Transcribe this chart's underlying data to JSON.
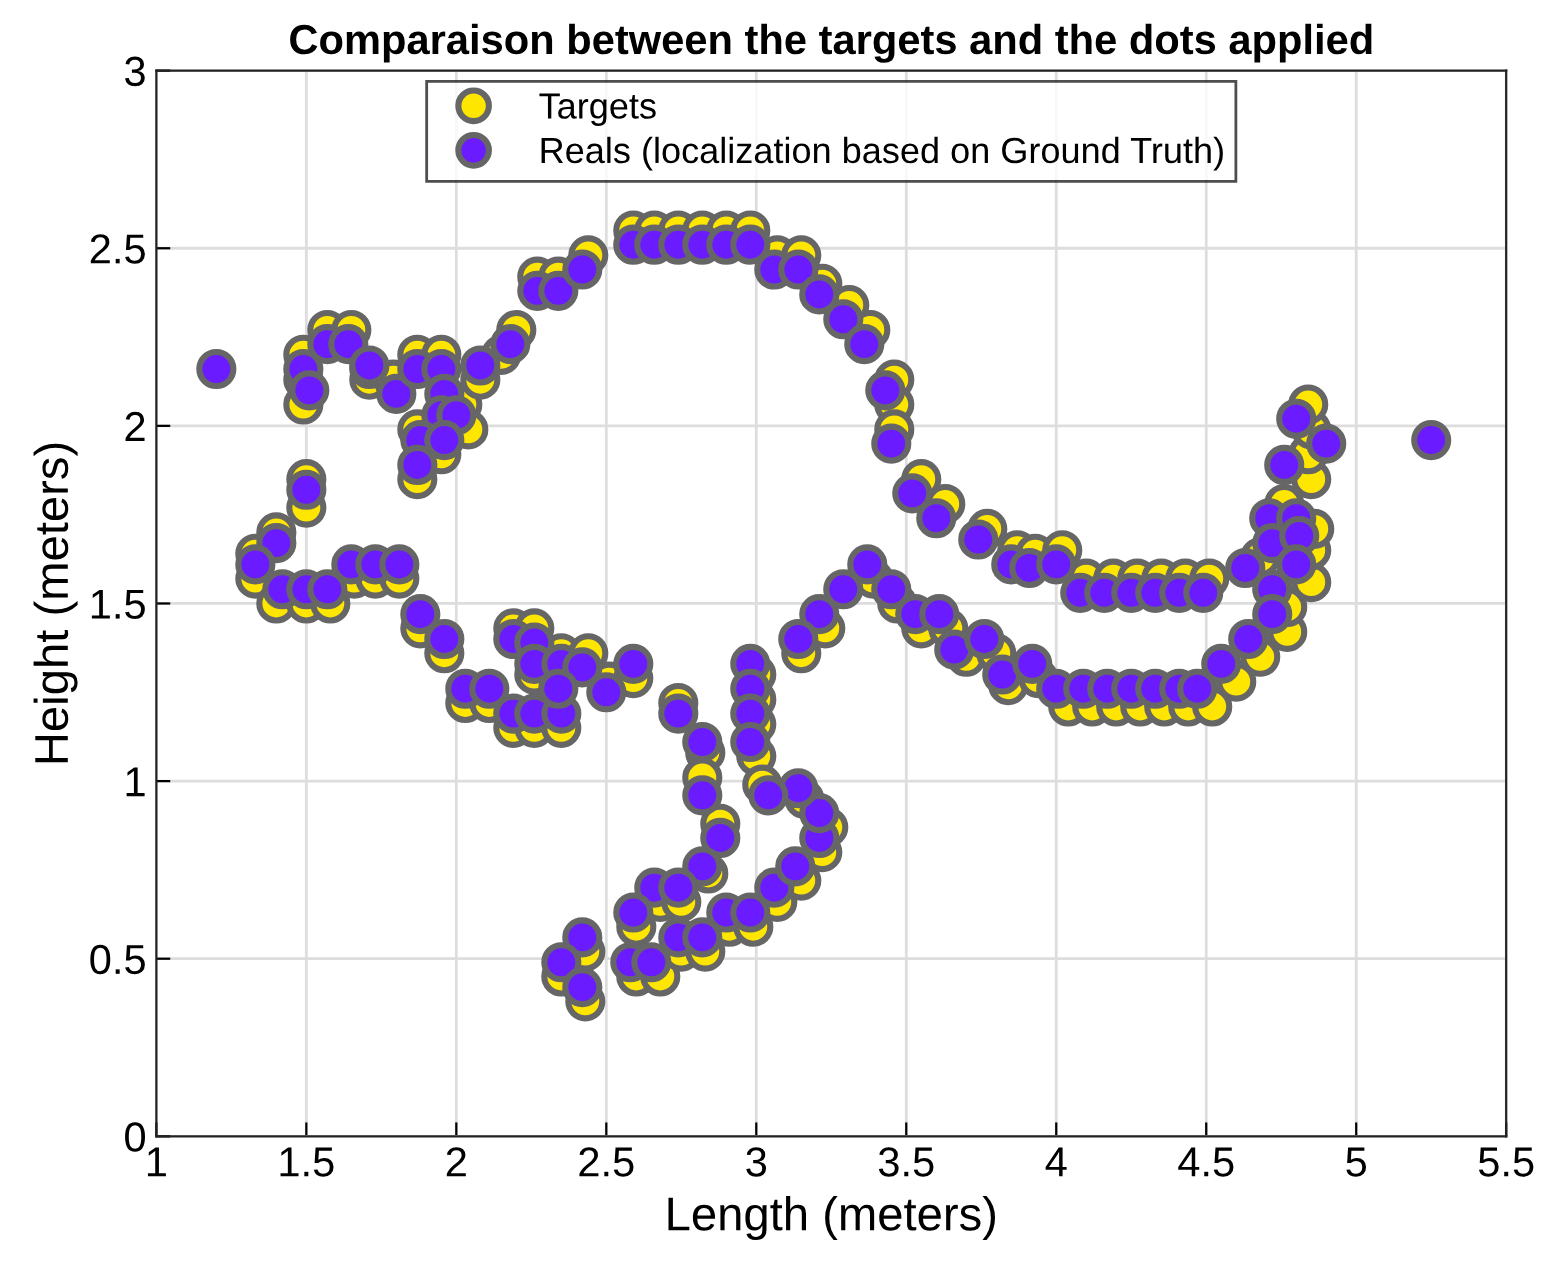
{
  "chart_data": {
    "type": "scatter",
    "title": "Comparaison between the targets and the dots applied",
    "xlabel": "Length (meters)",
    "ylabel": "Height (meters)",
    "xlim": [
      1,
      5.5
    ],
    "xticks": [
      1,
      1.5,
      2,
      2.5,
      3,
      3.5,
      4,
      4.5,
      5,
      5.5
    ],
    "ylim": [
      0,
      3
    ],
    "yticks": [
      0,
      0.5,
      1,
      1.5,
      2,
      2.5,
      3
    ],
    "grid": true,
    "legend": "top",
    "marker": "circle",
    "series": [
      {
        "name": "Targets",
        "color": "#ffe600",
        "x": [
          2.59,
          2.66,
          2.74,
          2.82,
          2.9,
          2.98,
          2.27,
          2.34,
          2.44,
          2.2,
          3.07,
          3.15,
          3.22,
          3.31,
          3.38,
          3.46,
          3.46,
          3.46,
          3.55,
          3.63,
          3.77,
          3.87,
          3.93,
          4.02,
          4.1,
          4.19,
          4.27,
          4.35,
          4.43,
          4.51,
          3.39,
          3.47,
          3.55,
          3.64,
          3.7,
          3.8,
          3.84,
          3.94,
          4.04,
          4.12,
          4.2,
          4.28,
          4.36,
          4.44,
          4.52,
          4.6,
          4.68,
          4.77,
          4.77,
          4.85,
          4.85,
          4.86,
          4.76,
          4.68,
          4.85,
          4.84,
          4.85,
          4.84,
          3.0,
          3.0,
          3.0,
          3.0,
          2.74,
          2.83,
          2.82,
          2.88,
          2.84,
          2.68,
          2.75,
          2.6,
          2.43,
          2.35,
          2.43,
          2.6,
          2.68,
          2.75,
          2.83,
          2.91,
          2.99,
          3.07,
          3.15,
          3.22,
          3.24,
          3.16,
          3.02,
          3.15,
          3.23,
          2.19,
          2.26,
          2.26,
          2.35,
          2.44,
          2.51,
          2.59,
          2.19,
          2.26,
          2.35,
          2.03,
          2.11,
          1.96,
          1.88,
          1.5,
          1.4,
          1.33,
          1.33,
          1.4,
          1.5,
          1.58,
          1.66,
          1.73,
          1.81,
          1.5,
          1.49,
          1.49,
          1.49,
          1.57,
          1.65,
          1.71,
          1.71,
          1.79,
          1.87,
          1.95,
          2.02,
          2.04,
          1.87,
          1.87,
          1.95,
          2.08,
          2.15
        ],
        "values": [
          2.55,
          2.55,
          2.55,
          2.55,
          2.55,
          2.55,
          2.42,
          2.42,
          2.48,
          2.27,
          2.48,
          2.48,
          2.4,
          2.34,
          2.27,
          2.13,
          2.06,
          1.99,
          1.85,
          1.78,
          1.71,
          1.65,
          1.64,
          1.65,
          1.57,
          1.57,
          1.57,
          1.57,
          1.57,
          1.57,
          1.57,
          1.5,
          1.43,
          1.43,
          1.35,
          1.36,
          1.27,
          1.29,
          1.21,
          1.21,
          1.21,
          1.21,
          1.21,
          1.21,
          1.21,
          1.28,
          1.35,
          1.42,
          1.49,
          1.56,
          1.65,
          1.71,
          1.78,
          1.63,
          1.85,
          1.92,
          1.99,
          2.06,
          1.3,
          1.23,
          1.16,
          1.07,
          1.22,
          1.08,
          1.01,
          0.88,
          0.74,
          0.66,
          0.66,
          0.59,
          0.52,
          0.45,
          0.38,
          0.45,
          0.45,
          0.52,
          0.52,
          0.59,
          0.59,
          0.66,
          0.72,
          0.8,
          0.87,
          0.95,
          0.99,
          1.36,
          1.43,
          1.43,
          1.43,
          1.3,
          1.36,
          1.36,
          1.28,
          1.29,
          1.15,
          1.15,
          1.15,
          1.22,
          1.22,
          1.36,
          1.43,
          1.85,
          1.7,
          1.64,
          1.57,
          1.5,
          1.5,
          1.5,
          1.57,
          1.57,
          1.57,
          1.77,
          2.2,
          2.13,
          2.06,
          2.27,
          2.27,
          2.13,
          2.16,
          2.13,
          2.2,
          2.2,
          2.06,
          1.99,
          1.99,
          1.85,
          1.92,
          2.13,
          2.2
        ]
      },
      {
        "name": "Reals (localization based on Ground Truth)",
        "color": "#6a1bff",
        "x": [
          1.2,
          5.25,
          1.49,
          1.51,
          1.57,
          1.64,
          1.71,
          1.8,
          1.87,
          1.95,
          1.96,
          1.95,
          2.0,
          1.88,
          1.96,
          1.87,
          2.08,
          2.18,
          2.27,
          2.34,
          2.42,
          2.59,
          2.66,
          2.74,
          2.82,
          2.9,
          2.98,
          3.06,
          3.14,
          3.21,
          3.29,
          3.36,
          3.43,
          3.45,
          3.52,
          3.6,
          3.74,
          3.85,
          3.91,
          4.0,
          4.08,
          4.16,
          4.25,
          4.33,
          4.41,
          4.49,
          4.76,
          4.8,
          4.9,
          4.71,
          4.8,
          4.72,
          4.81,
          4.63,
          4.8,
          4.72,
          4.72,
          4.64,
          4.55,
          4.0,
          4.09,
          4.17,
          4.25,
          4.33,
          4.41,
          4.47,
          3.37,
          3.45,
          3.53,
          3.61,
          3.66,
          3.76,
          3.82,
          3.92,
          3.29,
          3.21,
          3.14,
          2.98,
          2.98,
          2.98,
          2.98,
          2.74,
          2.82,
          2.82,
          2.88,
          2.82,
          2.66,
          2.74,
          2.59,
          2.42,
          2.35,
          2.42,
          2.58,
          2.65,
          2.74,
          2.82,
          2.9,
          2.98,
          3.06,
          3.13,
          3.21,
          3.21,
          3.14,
          3.04,
          2.19,
          2.26,
          2.26,
          2.35,
          2.42,
          2.5,
          2.59,
          2.19,
          2.26,
          2.35,
          1.88,
          1.96,
          2.03,
          2.11,
          2.34,
          1.5,
          1.4,
          1.33,
          1.42,
          1.5,
          1.57,
          1.65,
          1.73,
          1.81
        ],
        "values": [
          2.16,
          1.96,
          2.16,
          2.1,
          2.23,
          2.23,
          2.17,
          2.09,
          2.16,
          2.16,
          2.09,
          2.03,
          2.03,
          1.96,
          1.96,
          1.89,
          2.17,
          2.23,
          2.38,
          2.38,
          2.44,
          2.51,
          2.51,
          2.51,
          2.51,
          2.51,
          2.51,
          2.44,
          2.44,
          2.37,
          2.3,
          2.23,
          2.1,
          1.95,
          1.81,
          1.74,
          1.68,
          1.61,
          1.6,
          1.61,
          1.53,
          1.53,
          1.53,
          1.53,
          1.53,
          1.53,
          1.89,
          2.02,
          1.95,
          1.74,
          1.74,
          1.67,
          1.69,
          1.6,
          1.61,
          1.54,
          1.47,
          1.4,
          1.33,
          1.26,
          1.26,
          1.26,
          1.26,
          1.26,
          1.26,
          1.26,
          1.61,
          1.54,
          1.47,
          1.47,
          1.37,
          1.4,
          1.3,
          1.33,
          1.54,
          1.47,
          1.4,
          1.33,
          1.26,
          1.19,
          1.11,
          1.19,
          1.11,
          0.96,
          0.84,
          0.76,
          0.7,
          0.7,
          0.63,
          0.56,
          0.49,
          0.42,
          0.49,
          0.49,
          0.56,
          0.56,
          0.63,
          0.63,
          0.7,
          0.76,
          0.84,
          0.91,
          0.98,
          0.96,
          1.4,
          1.39,
          1.33,
          1.33,
          1.32,
          1.25,
          1.33,
          1.19,
          1.19,
          1.19,
          1.47,
          1.4,
          1.26,
          1.26,
          1.26,
          1.82,
          1.67,
          1.61,
          1.54,
          1.54,
          1.54,
          1.61,
          1.61,
          1.61
        ]
      }
    ]
  }
}
